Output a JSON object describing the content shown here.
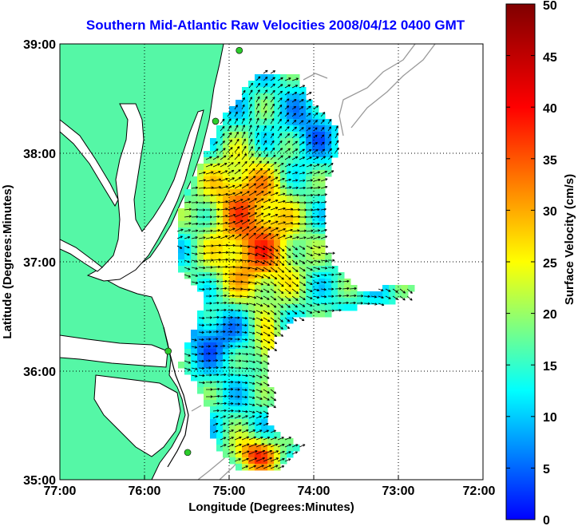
{
  "title": "Southern Mid-Atlantic Raw Velocities 2008/04/12 0400 GMT",
  "x_axis": {
    "label": "Longitude (Degrees:Minutes)",
    "ticks": [
      "77:00",
      "76:00",
      "75:00",
      "74:00",
      "73:00",
      "72:00"
    ],
    "range": [
      -77,
      -72
    ]
  },
  "y_axis": {
    "label": "Latitude (Degrees:Minutes)",
    "ticks": [
      "39:00",
      "38:00",
      "37:00",
      "36:00",
      "35:00"
    ],
    "range": [
      35,
      39
    ]
  },
  "colorbar": {
    "label": "Surface Velocity (cm/s)",
    "ticks": [
      "0",
      "5",
      "10",
      "15",
      "20",
      "25",
      "30",
      "35",
      "40",
      "45",
      "50"
    ],
    "range": [
      0,
      50
    ],
    "colormap": [
      "#0000ff",
      "#00ffff",
      "#ffff00",
      "#ff0000",
      "#800000"
    ]
  },
  "colors": {
    "land": "#55f7a6",
    "water": "#ffffff",
    "coastline": "#000000",
    "bathymetry": "#9a9a9a",
    "station": "#2ccc2c",
    "grid": "#000000",
    "vectors": "#000000"
  },
  "grid": "dotted",
  "stations": [
    {
      "lon": -74.88,
      "lat": 38.94
    },
    {
      "lon": -75.16,
      "lat": 38.29
    },
    {
      "lon": -75.72,
      "lat": 36.18
    },
    {
      "lon": -75.49,
      "lat": 35.25
    }
  ]
}
